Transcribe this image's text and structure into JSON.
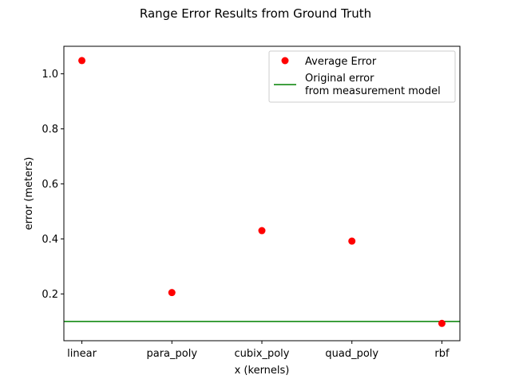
{
  "chart_data": {
    "type": "scatter",
    "title": "Range Error Results from Ground Truth",
    "xlabel": "x (kernels)",
    "ylabel": "error (meters)",
    "categories": [
      "linear",
      "para_poly",
      "cubix_poly",
      "quad_poly",
      "rbf"
    ],
    "series": [
      {
        "name": "Average Error",
        "values": [
          1.048,
          0.205,
          0.43,
          0.392,
          0.093
        ],
        "color": "#ff0000",
        "marker": "circle"
      }
    ],
    "reference_lines": [
      {
        "name": "Original error\nfrom measurement model",
        "name_lines": [
          "Original error",
          "from measurement model"
        ],
        "y": 0.1,
        "color": "#008000"
      }
    ],
    "ylim": [
      0.03,
      1.1
    ],
    "yticks": [
      0.2,
      0.4,
      0.6,
      0.8,
      1.0
    ],
    "ytick_labels": [
      "0.2",
      "0.4",
      "0.6",
      "0.8",
      "1.0"
    ],
    "grid": false,
    "legend_position": "top-right"
  }
}
